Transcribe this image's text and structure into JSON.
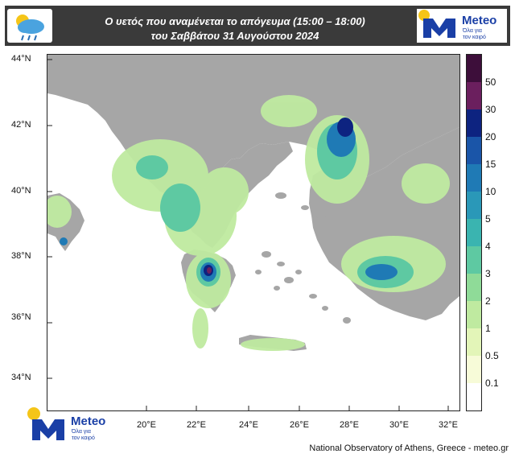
{
  "header": {
    "title_line1": "Ο υετός που αναμένεται το απόγευμα (15:00 – 18:00)",
    "title_line2": "του Σαββάτου 31 Αυγούστου 2024",
    "weather_icon": "rain-cloud-sun-icon",
    "logo": {
      "name": "Meteo",
      "tagline_1": "Όλα για",
      "tagline_2": "τον καιρό",
      "icon": "meteo-m-icon"
    }
  },
  "map": {
    "latitude_labels": [
      "44°N",
      "42°N",
      "40°N",
      "38°N",
      "36°N",
      "34°N"
    ],
    "longitude_labels": [
      "20°E",
      "22°E",
      "24°E",
      "26°E",
      "28°E",
      "30°E",
      "32°E"
    ],
    "land_color": "#a6a6a6",
    "sea_color": "#ffffff"
  },
  "legend": {
    "labels": [
      "50",
      "30",
      "20",
      "15",
      "10",
      "5",
      "4",
      "3",
      "2",
      "1",
      "0.5",
      "0.1"
    ],
    "colors": [
      "#3d0e3a",
      "#6b1f5e",
      "#0d2380",
      "#1a55a8",
      "#1f7ab5",
      "#2a98b8",
      "#3ab4b0",
      "#5ec9a2",
      "#8fdb98",
      "#bfeaa0",
      "#e3f5b8",
      "#f7fbd8",
      "#ffffff"
    ]
  },
  "footer": {
    "credit": "National Observatory of Athens, Greece - meteo.gr",
    "logo": {
      "name": "Meteo",
      "tagline_1": "Όλα για",
      "tagline_2": "τον καιρό",
      "icon": "meteo-m-icon"
    }
  }
}
